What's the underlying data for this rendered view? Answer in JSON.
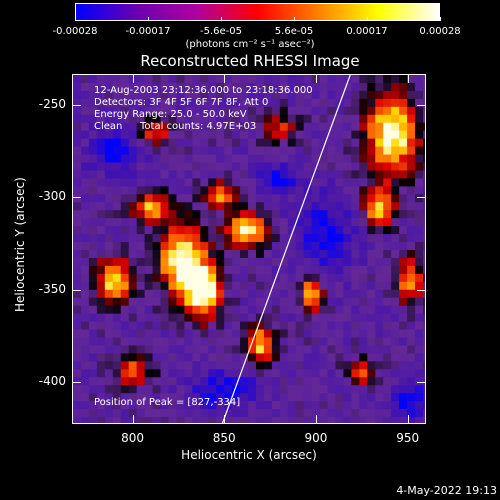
{
  "colorbar": {
    "ticks": [
      "-0.00028",
      "-0.00017",
      "-5.6e-05",
      "5.6e-05",
      "0.00017",
      "0.00028"
    ],
    "unit": "(photons cm⁻² s⁻¹ asec⁻²)",
    "stops": [
      "#0000ff",
      "#6a00b0",
      "#b000a0",
      "#ff0000",
      "#ff7f00",
      "#ffff00",
      "#ffffff"
    ]
  },
  "chart_data": {
    "type": "heatmap",
    "title": "Reconstructed RHESSI Image",
    "xlabel": "Heliocentric X (arcsec)",
    "ylabel": "Heliocentric Y (arcsec)",
    "xlim": [
      767,
      960
    ],
    "ylim": [
      -423,
      -233
    ],
    "xticks": [
      "800",
      "850",
      "900",
      "950"
    ],
    "yticks": [
      "-250",
      "-300",
      "-350",
      "-400"
    ],
    "annotations": [
      "12-Aug-2003 23:12:36.000 to 23:18:36.000",
      "Detectors: 3F 4F 5F 6F 7F 8F, Att 0",
      "Energy Range: 25.0 - 50.0 keV",
      "Clean",
      "Total counts: 4.97E+03",
      "Position of Peak = [827,-334]"
    ],
    "peak": {
      "x": 827,
      "y": -334
    },
    "limb_line": [
      [
        849,
        -423
      ],
      [
        919,
        -233
      ]
    ],
    "bright_regions": [
      {
        "x": 827,
        "y": -334,
        "level": 1.0,
        "rx": 13,
        "ry": 18
      },
      {
        "x": 838,
        "y": -352,
        "level": 0.95,
        "rx": 10,
        "ry": 14
      },
      {
        "x": 862,
        "y": -318,
        "level": 0.8,
        "rx": 12,
        "ry": 10
      },
      {
        "x": 790,
        "y": -345,
        "level": 0.85,
        "rx": 10,
        "ry": 12
      },
      {
        "x": 810,
        "y": -305,
        "level": 0.7,
        "rx": 11,
        "ry": 8
      },
      {
        "x": 848,
        "y": -298,
        "level": 0.65,
        "rx": 9,
        "ry": 7
      },
      {
        "x": 870,
        "y": -380,
        "level": 0.75,
        "rx": 8,
        "ry": 10
      },
      {
        "x": 898,
        "y": -352,
        "level": 0.7,
        "rx": 6,
        "ry": 11
      },
      {
        "x": 942,
        "y": -265,
        "level": 0.95,
        "rx": 14,
        "ry": 22
      },
      {
        "x": 935,
        "y": -305,
        "level": 0.75,
        "rx": 9,
        "ry": 11
      },
      {
        "x": 952,
        "y": -345,
        "level": 0.7,
        "rx": 7,
        "ry": 12
      },
      {
        "x": 880,
        "y": -262,
        "level": 0.45,
        "rx": 10,
        "ry": 8
      },
      {
        "x": 812,
        "y": -265,
        "level": 0.5,
        "rx": 9,
        "ry": 7
      },
      {
        "x": 800,
        "y": -395,
        "level": 0.55,
        "rx": 10,
        "ry": 8
      },
      {
        "x": 925,
        "y": -395,
        "level": 0.55,
        "rx": 8,
        "ry": 7
      }
    ],
    "dark_regions": [
      {
        "x": 905,
        "y": -320,
        "rx": 16,
        "ry": 20
      },
      {
        "x": 790,
        "y": -275,
        "rx": 14,
        "ry": 12
      },
      {
        "x": 850,
        "y": -405,
        "rx": 18,
        "ry": 10
      },
      {
        "x": 880,
        "y": -290,
        "rx": 10,
        "ry": 8
      },
      {
        "x": 950,
        "y": -410,
        "rx": 10,
        "ry": 10
      }
    ]
  },
  "footer": {
    "datestamp": "4-May-2022 19:13"
  }
}
